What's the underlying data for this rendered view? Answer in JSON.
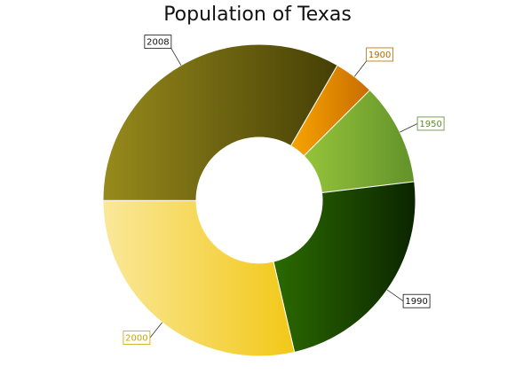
{
  "chart_data": {
    "type": "pie",
    "donut": true,
    "title": "Population of Texas",
    "categories": [
      "1900",
      "1950",
      "1990",
      "2000",
      "2008"
    ],
    "values": [
      3.05,
      7.71,
      16.99,
      20.85,
      24.33
    ],
    "start_angle_deg": 60,
    "legend": "none",
    "colors": {
      "1900": [
        "#f7a400",
        "#c96c00"
      ],
      "1950": [
        "#95c43a",
        "#62922a"
      ],
      "1990": [
        "#2b6a00",
        "#0b2500"
      ],
      "2000": [
        "#fae89a",
        "#f2c818"
      ],
      "2008": [
        "#978a1c",
        "#453f05"
      ]
    },
    "label_colors": {
      "1900": "#b36a00",
      "1950": "#5e8a2a",
      "1990": "#111111",
      "2000": "#c8a400",
      "2008": "#111111"
    }
  }
}
